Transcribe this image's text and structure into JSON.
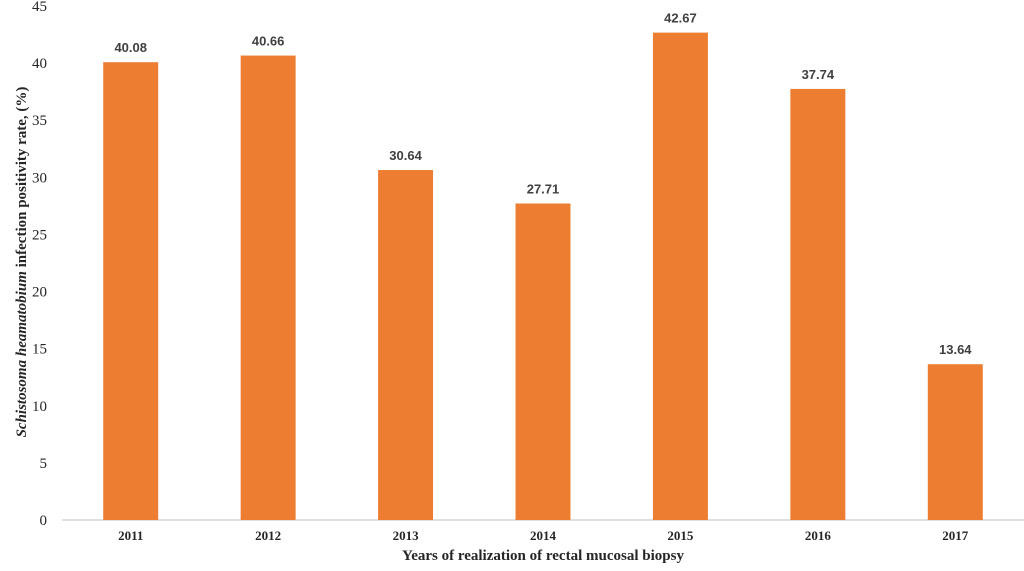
{
  "chart_data": {
    "type": "bar",
    "categories": [
      "2011",
      "2012",
      "2013",
      "2014",
      "2015",
      "2016",
      "2017"
    ],
    "values": [
      40.08,
      40.66,
      30.64,
      27.71,
      42.67,
      37.74,
      13.64
    ],
    "data_labels": [
      "40.08",
      "40.66",
      "30.64",
      "27.71",
      "42.67",
      "37.74",
      "13.64"
    ],
    "xlabel": "Years of realization of rectal mucosal biopsy",
    "ylabel_italic": "Schistosoma heamatobium",
    "ylabel_rest": " infection positivity rate, (%)",
    "ylim": [
      0,
      45
    ],
    "yticks": [
      "0",
      "5",
      "10",
      "15",
      "20",
      "25",
      "30",
      "35",
      "40",
      "45"
    ],
    "grid": false,
    "legend": "none",
    "colors": {
      "bar": "#ED7D31",
      "axis": "#BFBFBF"
    }
  }
}
